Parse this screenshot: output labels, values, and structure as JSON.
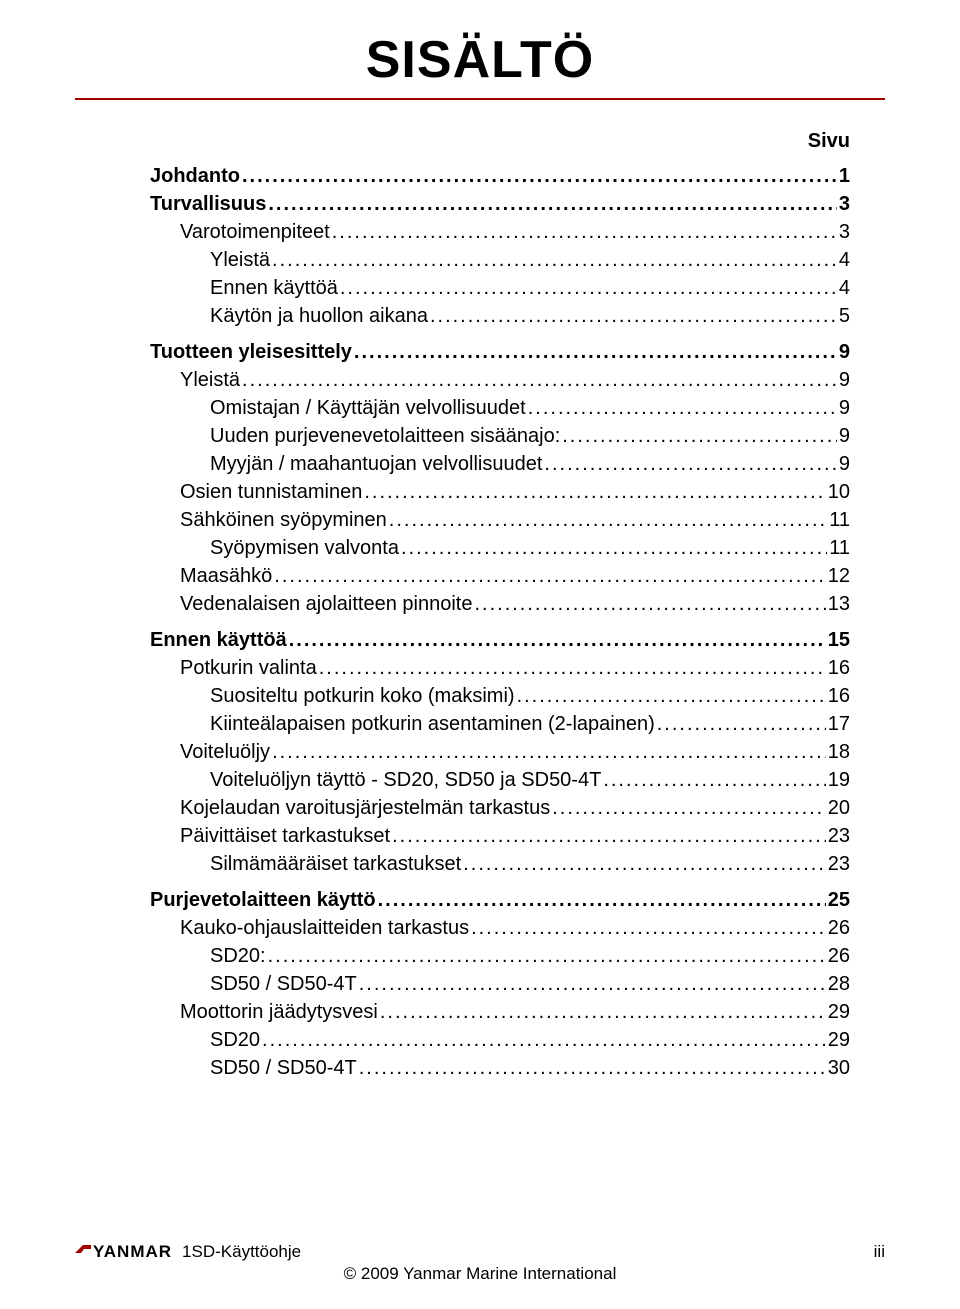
{
  "title": "SISÄLTÖ",
  "page_label": "Sivu",
  "entries": [
    {
      "level": 1,
      "label": "Johdanto",
      "page": "1"
    },
    {
      "level": 1,
      "label": "Turvallisuus",
      "page": "3"
    },
    {
      "level": 2,
      "label": "Varotoimenpiteet",
      "page": "3"
    },
    {
      "level": 3,
      "label": "Yleistä",
      "page": "4"
    },
    {
      "level": 3,
      "label": "Ennen käyttöä",
      "page": "4"
    },
    {
      "level": 3,
      "label": "Käytön ja huollon aikana",
      "page": "5"
    },
    {
      "level": 1,
      "label": "Tuotteen yleisesittely",
      "page": "9"
    },
    {
      "level": 2,
      "label": "Yleistä",
      "page": "9"
    },
    {
      "level": 3,
      "label": "Omistajan / Käyttäjän velvollisuudet",
      "page": "9"
    },
    {
      "level": 3,
      "label": "Uuden purjevenevetolaitteen sisäänajo:",
      "page": "9"
    },
    {
      "level": 3,
      "label": "Myyjän / maahantuojan velvollisuudet",
      "page": "9"
    },
    {
      "level": 2,
      "label": "Osien tunnistaminen",
      "page": "10"
    },
    {
      "level": 2,
      "label": "Sähköinen syöpyminen",
      "page": "11"
    },
    {
      "level": 3,
      "label": "Syöpymisen valvonta",
      "page": "11"
    },
    {
      "level": 2,
      "label": "Maasähkö",
      "page": "12"
    },
    {
      "level": 2,
      "label": "Vedenalaisen ajolaitteen pinnoite",
      "page": "13"
    },
    {
      "level": 1,
      "label": "Ennen käyttöä",
      "page": "15"
    },
    {
      "level": 2,
      "label": "Potkurin valinta",
      "page": "16"
    },
    {
      "level": 3,
      "label": "Suositeltu potkurin koko (maksimi)",
      "page": "16"
    },
    {
      "level": 3,
      "label": "Kiinteälapaisen potkurin asentaminen (2-lapainen)",
      "page": "17"
    },
    {
      "level": 2,
      "label": "Voiteluöljy",
      "page": "18"
    },
    {
      "level": 3,
      "label": "Voiteluöljyn täyttö - SD20, SD50 ja SD50-4T",
      "page": "19"
    },
    {
      "level": 2,
      "label": "Kojelaudan varoitusjärjestelmän tarkastus",
      "page": "20"
    },
    {
      "level": 2,
      "label": "Päivittäiset tarkastukset",
      "page": "23"
    },
    {
      "level": 3,
      "label": "Silmämääräiset tarkastukset",
      "page": "23"
    },
    {
      "level": 1,
      "label": "Purjevetolaitteen käyttö",
      "page": "25"
    },
    {
      "level": 2,
      "label": "Kauko-ohjauslaitteiden tarkastus",
      "page": "26"
    },
    {
      "level": 3,
      "label": "SD20:",
      "page": "26"
    },
    {
      "level": 3,
      "label": "SD50 / SD50-4T",
      "page": "28"
    },
    {
      "level": 2,
      "label": "Moottorin jäädytysvesi",
      "page": "29"
    },
    {
      "level": 3,
      "label": "SD20",
      "page": "29"
    },
    {
      "level": 3,
      "label": "SD50 / SD50-4T",
      "page": "30"
    }
  ],
  "footer": {
    "logo_text": "YANMAR",
    "doc_name": "1SD-Käyttöohje",
    "page_number": "iii",
    "copyright": "© 2009 Yanmar Marine International"
  },
  "colors": {
    "rule": "#a00000",
    "text": "#000000",
    "background": "#ffffff"
  }
}
